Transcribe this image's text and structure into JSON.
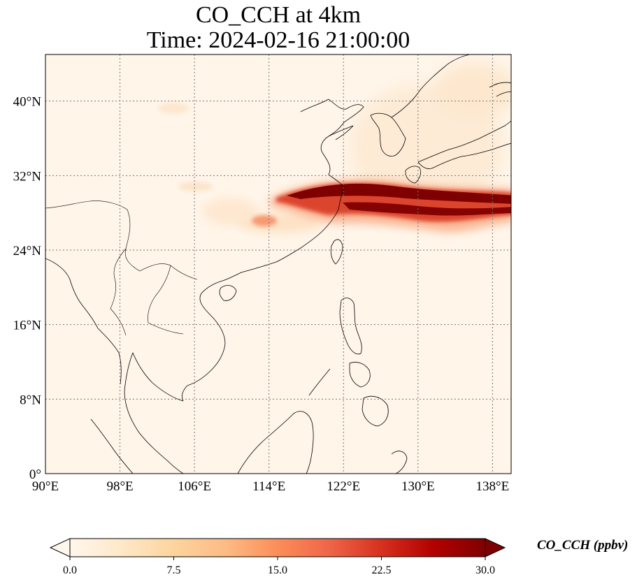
{
  "title": {
    "line1": "CO_CCH at 4km",
    "line2": "Time: 2024-02-16 21:00:00"
  },
  "map": {
    "variable": "CO_CCH",
    "lon_range": [
      90,
      140
    ],
    "lat_range": [
      0,
      45
    ],
    "lon_ticks": [
      90,
      98,
      106,
      114,
      122,
      130,
      138
    ],
    "lon_tick_labels": [
      "90°E",
      "98°E",
      "106°E",
      "114°E",
      "122°E",
      "130°E",
      "138°E"
    ],
    "lat_ticks": [
      0,
      8,
      16,
      24,
      32,
      40
    ],
    "lat_tick_labels": [
      "0°",
      "8°N",
      "16°N",
      "24°N",
      "32°N",
      "40°N"
    ],
    "grid": true,
    "grid_style": "dotted",
    "background_color": "#fff5e9",
    "plume_color": "#7f0000"
  },
  "colorbar": {
    "label": "CO_CCH (ppbv)",
    "min": 0.0,
    "max": 30.0,
    "ticks": [
      0.0,
      7.5,
      15.0,
      22.5,
      30.0
    ],
    "tick_labels": [
      "0.0",
      "7.5",
      "15.0",
      "22.5",
      "30.0"
    ],
    "colors": [
      "#fff7ec",
      "#fee8c8",
      "#fdd49e",
      "#fdbb84",
      "#fc8d59",
      "#ef6548",
      "#d7301f",
      "#b30000",
      "#7f0000"
    ],
    "extend": "both"
  }
}
